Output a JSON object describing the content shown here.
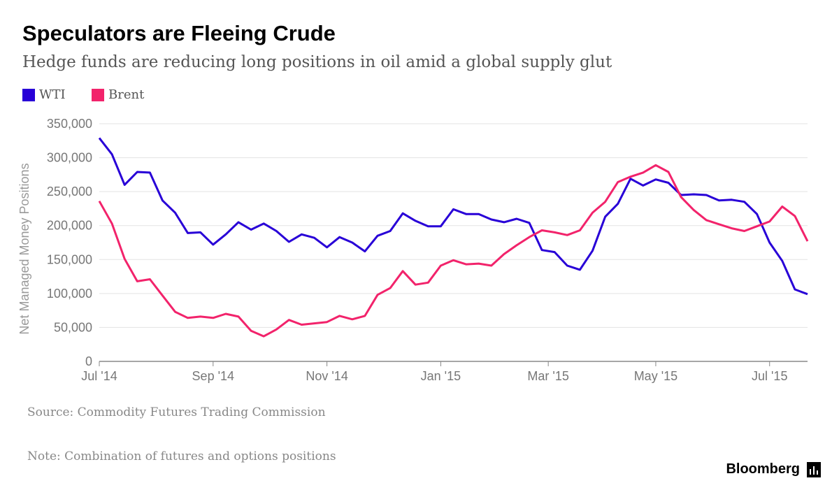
{
  "header": {
    "title": "Speculators are Fleeing Crude",
    "subtitle": "Hedge funds are reducing long positions in oil amid a global supply glut"
  },
  "legend": {
    "items": [
      {
        "label": "WTI",
        "color": "#2800d7"
      },
      {
        "label": "Brent",
        "color": "#f2236b"
      }
    ]
  },
  "footer": {
    "source": "Source: Commodity Futures Trading Commission",
    "note": "Note: Combination of futures and options positions",
    "brand": "Bloomberg"
  },
  "chart_data": {
    "type": "line",
    "title": "Speculators are Fleeing Crude",
    "xlabel": "",
    "ylabel": "Net Managed Money Positions",
    "ylim": [
      0,
      350000
    ],
    "yticks": [
      0,
      50000,
      100000,
      150000,
      200000,
      250000,
      300000,
      350000
    ],
    "ytick_labels": [
      "0",
      "50,000",
      "100,000",
      "150,000",
      "200,000",
      "250,000",
      "300,000",
      "350,000"
    ],
    "x_weeks_total": 56,
    "xticks": [
      {
        "label": "Jul '14",
        "week": 0
      },
      {
        "label": "Sep '14",
        "week": 9
      },
      {
        "label": "Nov '14",
        "week": 18
      },
      {
        "label": "Jan '15",
        "week": 27
      },
      {
        "label": "Mar '15",
        "week": 35.5
      },
      {
        "label": "May '15",
        "week": 44
      },
      {
        "label": "Jul '15",
        "week": 53
      }
    ],
    "grid": true,
    "series": [
      {
        "name": "WTI",
        "color": "#2800d7",
        "values": [
          329000,
          305000,
          260000,
          279000,
          278000,
          237000,
          219000,
          189000,
          190000,
          172000,
          187000,
          205000,
          194000,
          203000,
          192000,
          176000,
          187000,
          182000,
          168000,
          183000,
          175000,
          162000,
          185000,
          192000,
          218000,
          207000,
          199000,
          199000,
          224000,
          217000,
          217000,
          209000,
          205000,
          210000,
          204000,
          164000,
          161000,
          141000,
          135000,
          163000,
          213000,
          232000,
          269000,
          259000,
          268000,
          263000,
          245000,
          246000,
          245000,
          237000,
          238000,
          235000,
          217000,
          175000,
          148000,
          106000,
          99000
        ]
      },
      {
        "name": "Brent",
        "color": "#f2236b",
        "values": [
          236000,
          203000,
          151000,
          118000,
          121000,
          97000,
          73000,
          64000,
          66000,
          64000,
          70000,
          66000,
          45000,
          37000,
          47000,
          61000,
          54000,
          56000,
          58000,
          67000,
          62000,
          67000,
          98000,
          108000,
          133000,
          113000,
          116000,
          141000,
          149000,
          143000,
          144000,
          141000,
          158000,
          171000,
          183000,
          193000,
          190000,
          186000,
          193000,
          219000,
          235000,
          264000,
          272000,
          278000,
          289000,
          279000,
          242000,
          223000,
          208000,
          202000,
          196000,
          192000,
          199000,
          206000,
          228000,
          214000,
          177000
        ]
      }
    ]
  }
}
